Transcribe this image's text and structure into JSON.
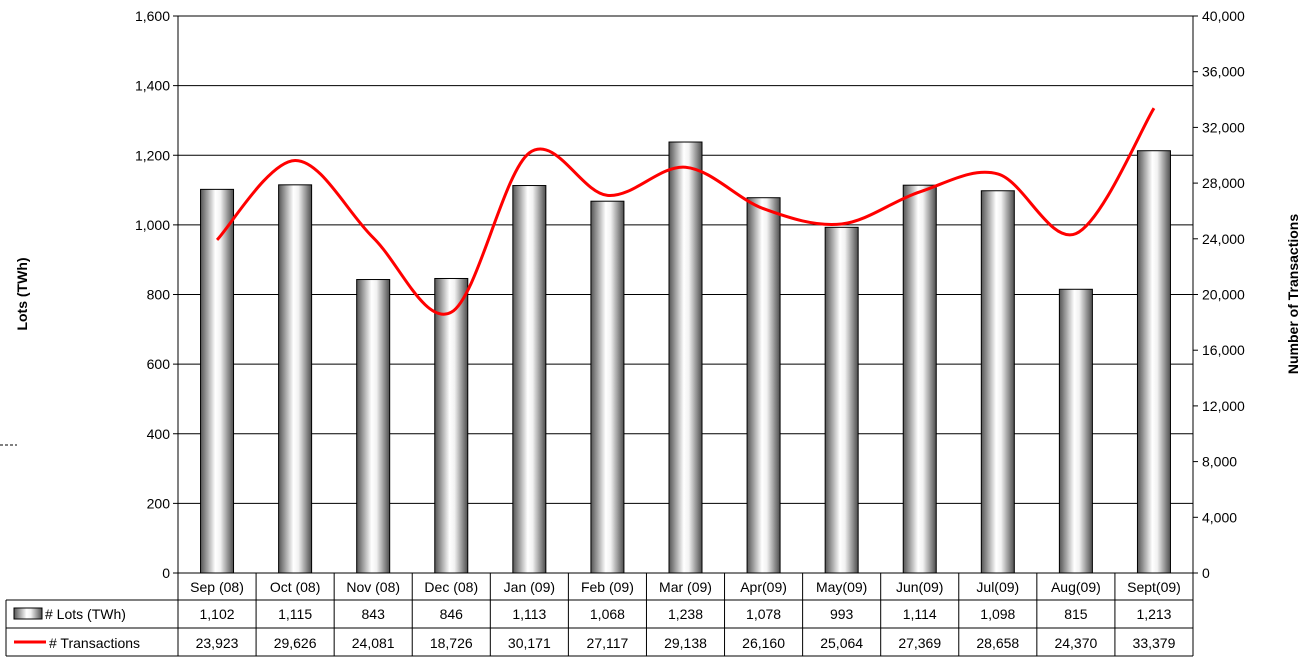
{
  "chart_data": {
    "type": "bar",
    "categories": [
      "Sep (08)",
      "Oct (08)",
      "Nov (08)",
      "Dec (08)",
      "Jan (09)",
      "Feb (09)",
      "Mar (09)",
      "Apr(09)",
      "May(09)",
      "Jun(09)",
      "Jul(09)",
      "Aug(09)",
      "Sept(09)"
    ],
    "series": [
      {
        "name": "# Lots (TWh)",
        "type": "bar",
        "axis": "left",
        "values": [
          1102,
          1115,
          843,
          846,
          1113,
          1068,
          1238,
          1078,
          993,
          1114,
          1098,
          815,
          1213
        ],
        "labels": [
          "1,102",
          "1,115",
          "843",
          "846",
          "1,113",
          "1,068",
          "1,238",
          "1,078",
          "993",
          "1,114",
          "1,098",
          "815",
          "1,213"
        ]
      },
      {
        "name": "# Transactions",
        "type": "line",
        "axis": "right",
        "color": "#ff0000",
        "smooth": true,
        "values": [
          23923,
          29626,
          24081,
          18726,
          30171,
          27117,
          29138,
          26160,
          25064,
          27369,
          28658,
          24370,
          33379
        ],
        "labels": [
          "23,923",
          "29,626",
          "24,081",
          "18,726",
          "30,171",
          "27,117",
          "29,138",
          "26,160",
          "25,064",
          "27,369",
          "28,658",
          "24,370",
          "33,379"
        ]
      }
    ],
    "ylabel": "Lots (TWh)",
    "ylabel_right": "Number of Transactions",
    "ylim": [
      0,
      1600
    ],
    "ylim_right": [
      0,
      40000
    ],
    "yticks": [
      "0",
      "200",
      "400",
      "600",
      "800",
      "1,000",
      "1,200",
      "1,400",
      "1,600"
    ],
    "yticks_right": [
      "0",
      "4,000",
      "8,000",
      "12,000",
      "16,000",
      "20,000",
      "24,000",
      "28,000",
      "32,000",
      "36,000",
      "40,000"
    ],
    "grid": true,
    "data_table": true,
    "colors": {
      "bar_dark": "#5a5a5a",
      "bar_light": "#ffffff",
      "line": "#ff0000",
      "grid": "#000000"
    }
  }
}
